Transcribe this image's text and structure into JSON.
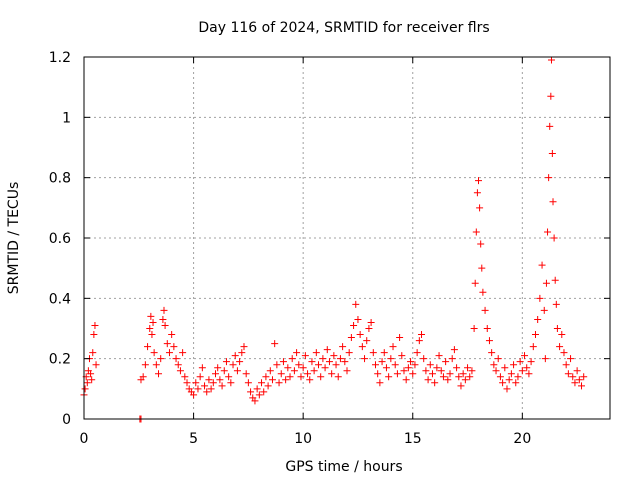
{
  "chart_data": {
    "type": "scatter",
    "title": "Day 116 of 2024, SRMTID for receiver flrs",
    "xlabel": "GPS time / hours",
    "ylabel": "SRMTID / TECUs",
    "xlim": [
      0,
      24
    ],
    "ylim": [
      0,
      1.2
    ],
    "xticks": [
      0,
      5,
      10,
      15,
      20
    ],
    "xtick_labels": [
      "0",
      "5",
      "10",
      "15",
      "20"
    ],
    "yticks": [
      0,
      0.2,
      0.4,
      0.6,
      0.8,
      1.0,
      1.2
    ],
    "ytick_labels": [
      "0",
      "0.2",
      "0.4",
      "0.6",
      "0.8",
      "1",
      "1.2"
    ],
    "grid": true,
    "marker": "+",
    "series": [
      {
        "name": "SRMTID",
        "color": "#ff0000",
        "points": [
          [
            0.0,
            0.08
          ],
          [
            0.05,
            0.1
          ],
          [
            0.1,
            0.14
          ],
          [
            0.15,
            0.12
          ],
          [
            0.2,
            0.16
          ],
          [
            0.25,
            0.2
          ],
          [
            0.3,
            0.15
          ],
          [
            0.35,
            0.13
          ],
          [
            0.4,
            0.22
          ],
          [
            0.45,
            0.28
          ],
          [
            0.5,
            0.31
          ],
          [
            0.55,
            0.18
          ],
          [
            2.55,
            0.0
          ],
          [
            2.6,
            0.0
          ],
          [
            2.6,
            0.13
          ],
          [
            2.7,
            0.14
          ],
          [
            2.8,
            0.18
          ],
          [
            2.9,
            0.24
          ],
          [
            3.0,
            0.3
          ],
          [
            3.05,
            0.34
          ],
          [
            3.1,
            0.28
          ],
          [
            3.15,
            0.32
          ],
          [
            3.2,
            0.22
          ],
          [
            3.3,
            0.18
          ],
          [
            3.4,
            0.15
          ],
          [
            3.5,
            0.2
          ],
          [
            3.6,
            0.33
          ],
          [
            3.65,
            0.36
          ],
          [
            3.7,
            0.31
          ],
          [
            3.8,
            0.25
          ],
          [
            3.9,
            0.22
          ],
          [
            4.0,
            0.28
          ],
          [
            4.1,
            0.24
          ],
          [
            4.2,
            0.2
          ],
          [
            4.3,
            0.18
          ],
          [
            4.4,
            0.16
          ],
          [
            4.5,
            0.22
          ],
          [
            4.6,
            0.14
          ],
          [
            4.7,
            0.12
          ],
          [
            4.8,
            0.1
          ],
          [
            4.9,
            0.09
          ],
          [
            5.0,
            0.08
          ],
          [
            5.1,
            0.12
          ],
          [
            5.2,
            0.1
          ],
          [
            5.3,
            0.14
          ],
          [
            5.4,
            0.17
          ],
          [
            5.5,
            0.11
          ],
          [
            5.6,
            0.09
          ],
          [
            5.7,
            0.13
          ],
          [
            5.8,
            0.1
          ],
          [
            5.9,
            0.12
          ],
          [
            6.0,
            0.15
          ],
          [
            6.1,
            0.17
          ],
          [
            6.2,
            0.13
          ],
          [
            6.3,
            0.11
          ],
          [
            6.4,
            0.16
          ],
          [
            6.5,
            0.19
          ],
          [
            6.6,
            0.14
          ],
          [
            6.7,
            0.12
          ],
          [
            6.8,
            0.18
          ],
          [
            6.9,
            0.21
          ],
          [
            7.0,
            0.16
          ],
          [
            7.1,
            0.19
          ],
          [
            7.2,
            0.22
          ],
          [
            7.3,
            0.24
          ],
          [
            7.4,
            0.15
          ],
          [
            7.5,
            0.12
          ],
          [
            7.6,
            0.09
          ],
          [
            7.7,
            0.07
          ],
          [
            7.8,
            0.06
          ],
          [
            7.9,
            0.1
          ],
          [
            8.0,
            0.08
          ],
          [
            8.1,
            0.12
          ],
          [
            8.2,
            0.09
          ],
          [
            8.3,
            0.14
          ],
          [
            8.4,
            0.11
          ],
          [
            8.5,
            0.16
          ],
          [
            8.6,
            0.13
          ],
          [
            8.7,
            0.25
          ],
          [
            8.8,
            0.18
          ],
          [
            8.9,
            0.12
          ],
          [
            9.0,
            0.15
          ],
          [
            9.1,
            0.19
          ],
          [
            9.2,
            0.13
          ],
          [
            9.3,
            0.17
          ],
          [
            9.4,
            0.14
          ],
          [
            9.5,
            0.2
          ],
          [
            9.6,
            0.16
          ],
          [
            9.7,
            0.22
          ],
          [
            9.8,
            0.18
          ],
          [
            9.9,
            0.14
          ],
          [
            10.0,
            0.17
          ],
          [
            10.1,
            0.21
          ],
          [
            10.2,
            0.15
          ],
          [
            10.3,
            0.13
          ],
          [
            10.4,
            0.19
          ],
          [
            10.5,
            0.16
          ],
          [
            10.6,
            0.22
          ],
          [
            10.7,
            0.18
          ],
          [
            10.8,
            0.14
          ],
          [
            10.9,
            0.2
          ],
          [
            11.0,
            0.17
          ],
          [
            11.1,
            0.23
          ],
          [
            11.2,
            0.19
          ],
          [
            11.3,
            0.15
          ],
          [
            11.4,
            0.21
          ],
          [
            11.5,
            0.18
          ],
          [
            11.6,
            0.14
          ],
          [
            11.7,
            0.2
          ],
          [
            11.8,
            0.24
          ],
          [
            11.9,
            0.19
          ],
          [
            12.0,
            0.16
          ],
          [
            12.1,
            0.22
          ],
          [
            12.2,
            0.27
          ],
          [
            12.3,
            0.31
          ],
          [
            12.4,
            0.38
          ],
          [
            12.5,
            0.33
          ],
          [
            12.6,
            0.28
          ],
          [
            12.7,
            0.24
          ],
          [
            12.8,
            0.2
          ],
          [
            12.9,
            0.26
          ],
          [
            13.0,
            0.3
          ],
          [
            13.1,
            0.32
          ],
          [
            13.2,
            0.22
          ],
          [
            13.3,
            0.18
          ],
          [
            13.4,
            0.15
          ],
          [
            13.5,
            0.12
          ],
          [
            13.6,
            0.19
          ],
          [
            13.7,
            0.22
          ],
          [
            13.8,
            0.17
          ],
          [
            13.9,
            0.14
          ],
          [
            14.0,
            0.2
          ],
          [
            14.1,
            0.24
          ],
          [
            14.2,
            0.18
          ],
          [
            14.3,
            0.15
          ],
          [
            14.4,
            0.27
          ],
          [
            14.5,
            0.21
          ],
          [
            14.6,
            0.16
          ],
          [
            14.7,
            0.13
          ],
          [
            14.8,
            0.17
          ],
          [
            14.9,
            0.19
          ],
          [
            15.0,
            0.15
          ],
          [
            15.1,
            0.18
          ],
          [
            15.2,
            0.22
          ],
          [
            15.3,
            0.26
          ],
          [
            15.4,
            0.28
          ],
          [
            15.5,
            0.2
          ],
          [
            15.6,
            0.16
          ],
          [
            15.7,
            0.13
          ],
          [
            15.8,
            0.18
          ],
          [
            15.9,
            0.15
          ],
          [
            16.0,
            0.12
          ],
          [
            16.1,
            0.17
          ],
          [
            16.2,
            0.21
          ],
          [
            16.3,
            0.16
          ],
          [
            16.4,
            0.14
          ],
          [
            16.5,
            0.19
          ],
          [
            16.6,
            0.13
          ],
          [
            16.7,
            0.15
          ],
          [
            16.8,
            0.2
          ],
          [
            16.9,
            0.23
          ],
          [
            17.0,
            0.17
          ],
          [
            17.1,
            0.14
          ],
          [
            17.2,
            0.11
          ],
          [
            17.3,
            0.15
          ],
          [
            17.4,
            0.13
          ],
          [
            17.5,
            0.17
          ],
          [
            17.6,
            0.14
          ],
          [
            17.7,
            0.16
          ],
          [
            17.8,
            0.3
          ],
          [
            17.85,
            0.45
          ],
          [
            17.9,
            0.62
          ],
          [
            17.95,
            0.75
          ],
          [
            18.0,
            0.79
          ],
          [
            18.05,
            0.7
          ],
          [
            18.1,
            0.58
          ],
          [
            18.15,
            0.5
          ],
          [
            18.2,
            0.42
          ],
          [
            18.3,
            0.36
          ],
          [
            18.4,
            0.3
          ],
          [
            18.5,
            0.26
          ],
          [
            18.6,
            0.22
          ],
          [
            18.7,
            0.18
          ],
          [
            18.8,
            0.16
          ],
          [
            18.9,
            0.2
          ],
          [
            19.0,
            0.14
          ],
          [
            19.1,
            0.12
          ],
          [
            19.2,
            0.17
          ],
          [
            19.3,
            0.1
          ],
          [
            19.4,
            0.13
          ],
          [
            19.5,
            0.15
          ],
          [
            19.6,
            0.18
          ],
          [
            19.7,
            0.12
          ],
          [
            19.8,
            0.14
          ],
          [
            19.9,
            0.19
          ],
          [
            20.0,
            0.16
          ],
          [
            20.1,
            0.21
          ],
          [
            20.2,
            0.17
          ],
          [
            20.3,
            0.15
          ],
          [
            20.4,
            0.19
          ],
          [
            20.5,
            0.24
          ],
          [
            20.6,
            0.28
          ],
          [
            20.7,
            0.33
          ],
          [
            20.8,
            0.4
          ],
          [
            20.9,
            0.51
          ],
          [
            21.0,
            0.36
          ],
          [
            21.05,
            0.2
          ],
          [
            21.1,
            0.45
          ],
          [
            21.15,
            0.62
          ],
          [
            21.2,
            0.8
          ],
          [
            21.25,
            0.97
          ],
          [
            21.3,
            1.07
          ],
          [
            21.33,
            1.19
          ],
          [
            21.37,
            0.88
          ],
          [
            21.4,
            0.72
          ],
          [
            21.45,
            0.6
          ],
          [
            21.5,
            0.46
          ],
          [
            21.55,
            0.38
          ],
          [
            21.6,
            0.3
          ],
          [
            21.7,
            0.24
          ],
          [
            21.8,
            0.28
          ],
          [
            21.9,
            0.22
          ],
          [
            22.0,
            0.18
          ],
          [
            22.1,
            0.15
          ],
          [
            22.2,
            0.2
          ],
          [
            22.3,
            0.14
          ],
          [
            22.4,
            0.12
          ],
          [
            22.5,
            0.16
          ],
          [
            22.6,
            0.13
          ],
          [
            22.7,
            0.11
          ],
          [
            22.8,
            0.14
          ]
        ]
      }
    ]
  }
}
